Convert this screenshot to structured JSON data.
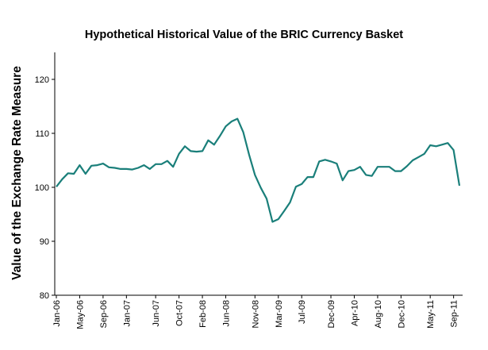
{
  "chart_data": {
    "type": "line",
    "title": "Hypothetical Historical Value of the BRIC Currency Basket",
    "xlabel": "",
    "ylabel": "Value of the Exchange Rate Measure",
    "ylim": [
      80,
      125
    ],
    "yticks": [
      80,
      90,
      100,
      110,
      120
    ],
    "grid": false,
    "color": "#1a7f7a",
    "x_tick_labels": [
      "Jan-06",
      "May-06",
      "Sep-06",
      "Jan-07",
      "Jun-07",
      "Oct-07",
      "Feb-08",
      "Jun-08",
      "Nov-08",
      "Mar-09",
      "Jul-09",
      "Dec-09",
      "Apr-10",
      "Aug-10",
      "Dec-10",
      "May-11",
      "Sep-11"
    ],
    "x_tick_index": [
      0,
      4,
      8,
      12,
      17,
      21,
      25,
      29,
      34,
      38,
      42,
      47,
      51,
      55,
      59,
      64,
      68
    ],
    "values": [
      100.1,
      101.5,
      102.6,
      102.5,
      104.1,
      102.5,
      104.0,
      104.1,
      104.4,
      103.7,
      103.6,
      103.4,
      103.4,
      103.3,
      103.6,
      104.1,
      103.4,
      104.3,
      104.3,
      104.9,
      103.8,
      106.2,
      107.6,
      106.7,
      106.6,
      106.7,
      108.7,
      107.9,
      109.5,
      111.3,
      112.2,
      112.7,
      110.2,
      106.0,
      102.3,
      99.9,
      97.9,
      93.6,
      94.1,
      95.6,
      97.2,
      100.1,
      100.6,
      101.9,
      101.9,
      104.8,
      105.1,
      104.8,
      104.4,
      101.3,
      103.0,
      103.2,
      103.8,
      102.3,
      102.1,
      103.8,
      103.8,
      103.8,
      103.0,
      103.0,
      103.9,
      105.0,
      105.6,
      106.2,
      107.8,
      107.6,
      107.9,
      108.2,
      106.9,
      100.3
    ]
  }
}
